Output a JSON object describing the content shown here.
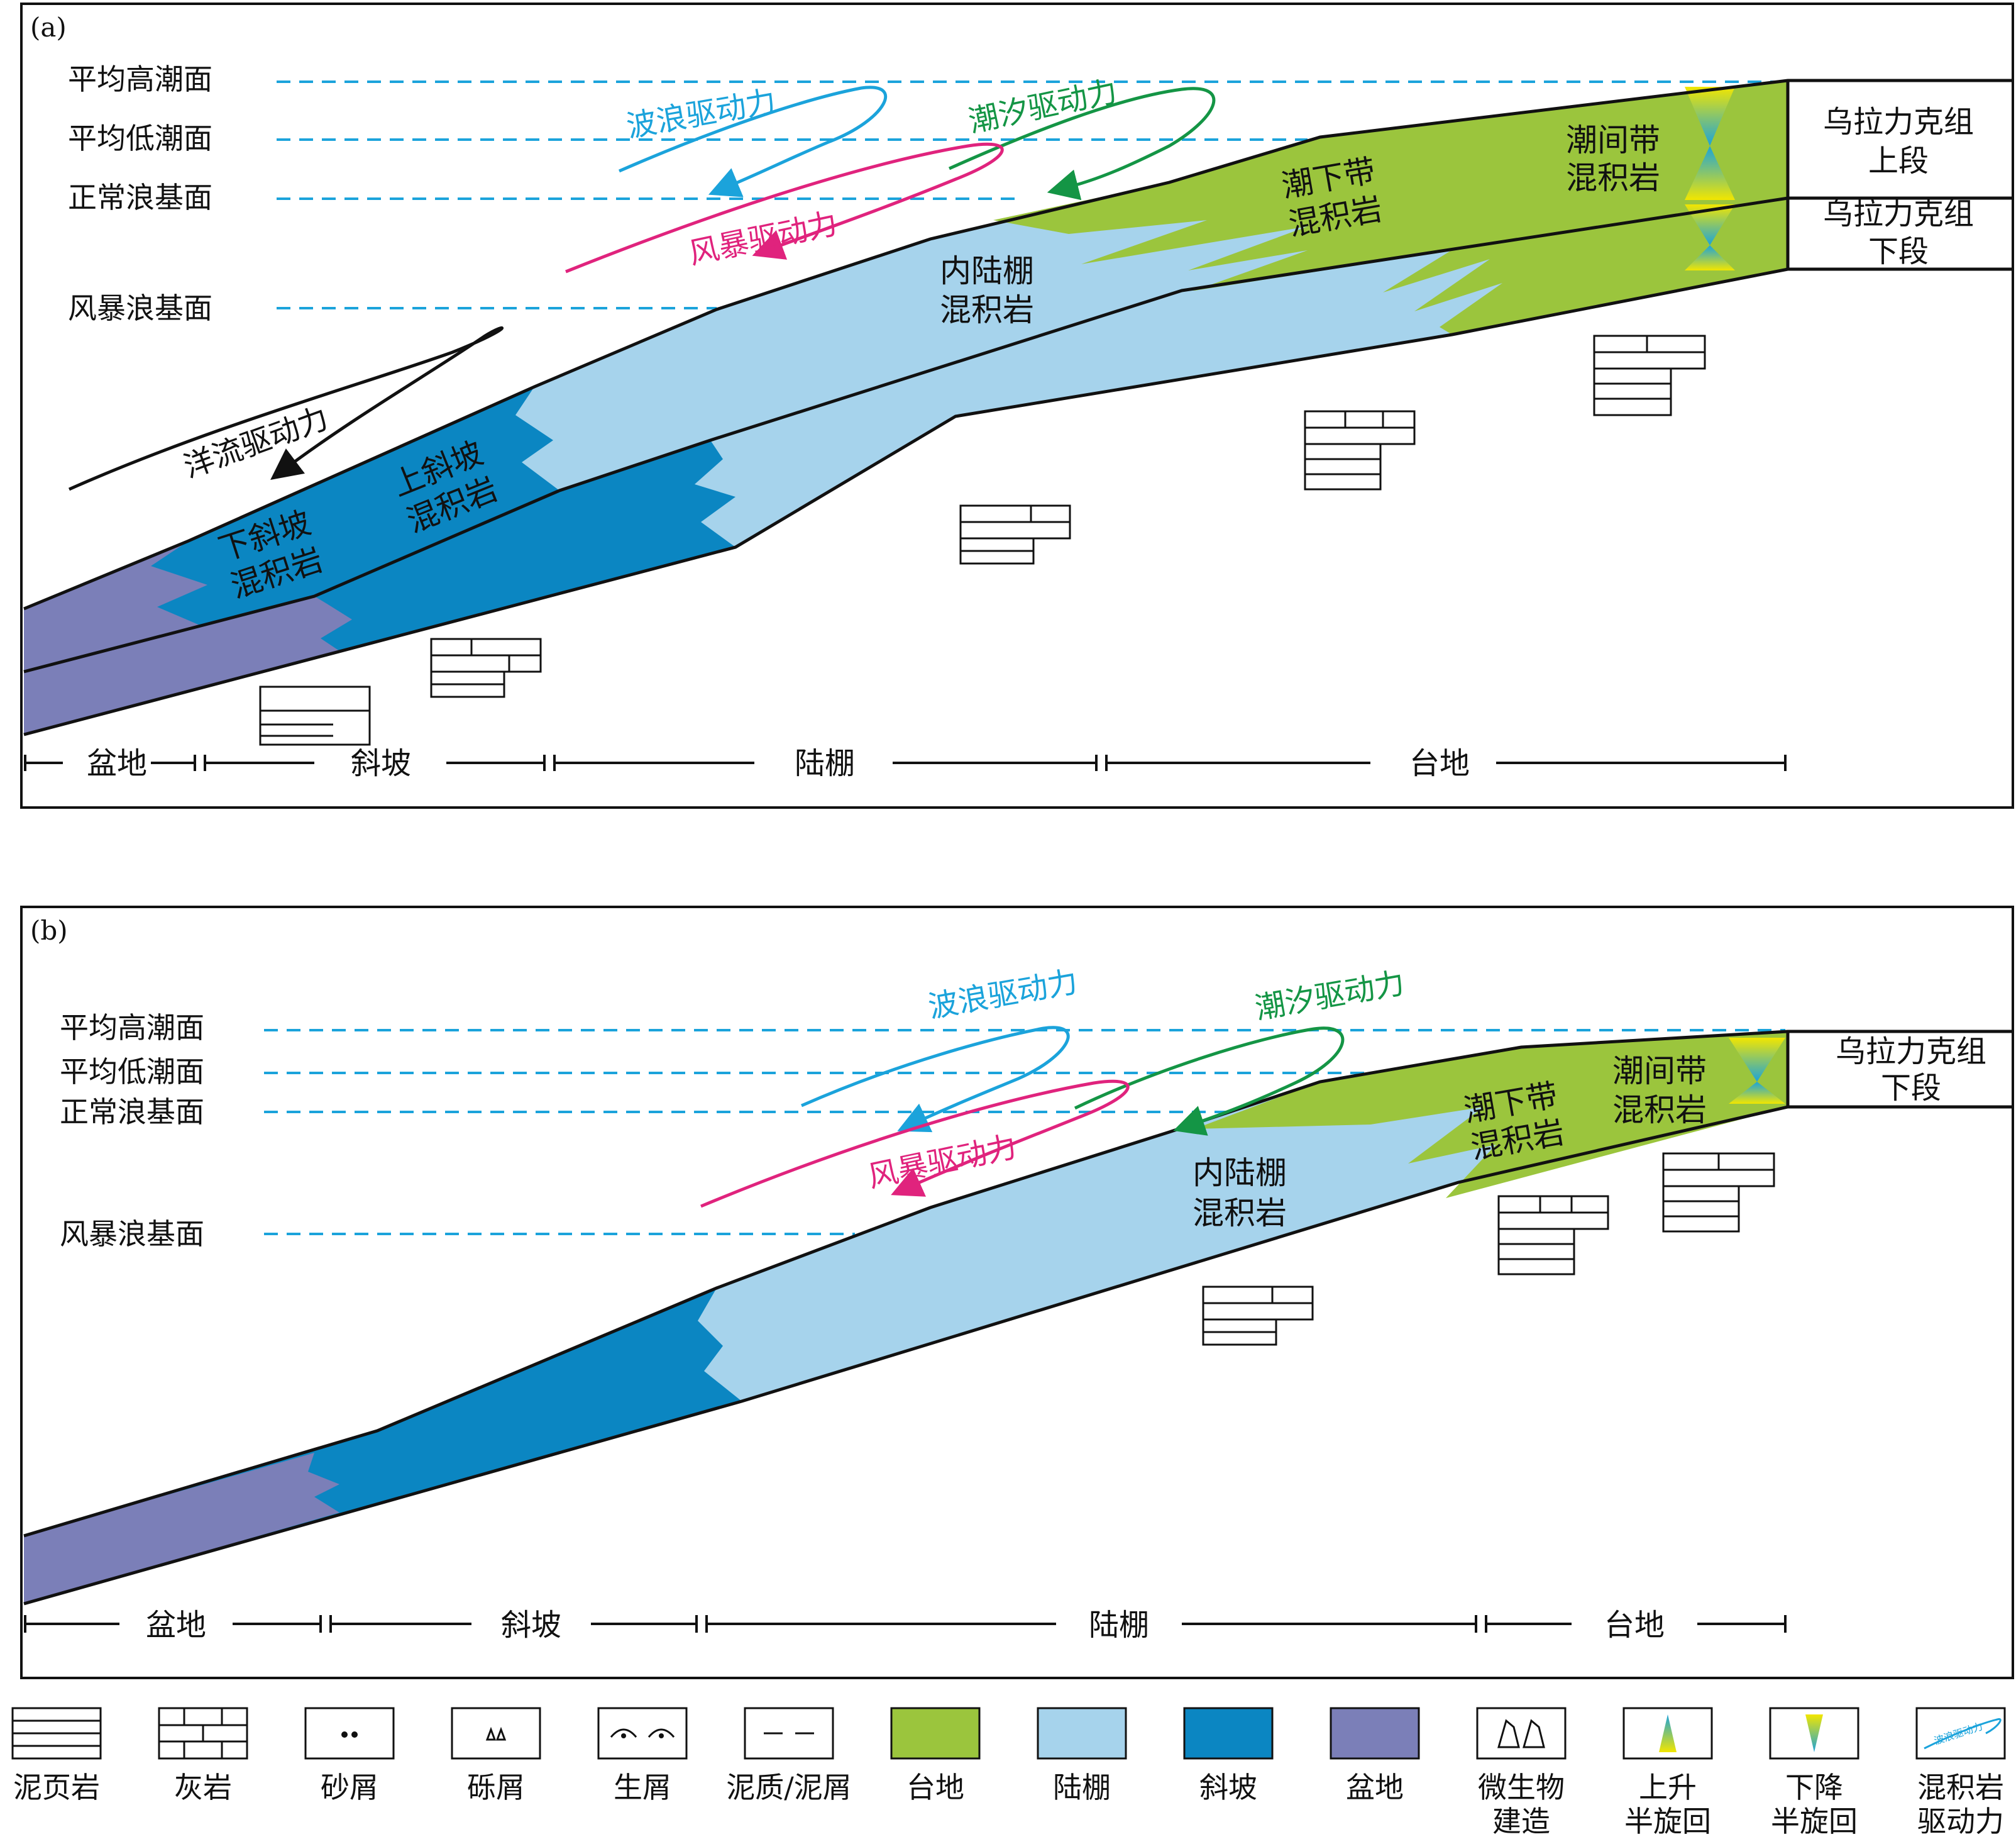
{
  "colors": {
    "platform": "#9BC53D",
    "shelf": "#A6D3EC",
    "slope": "#0B86C2",
    "basin": "#7B7FB8",
    "wave": "#1BA3DB",
    "tide": "#149545",
    "storm": "#E0237D",
    "current": "#111111",
    "dashed": "#1BA3DB"
  },
  "panel_a": {
    "tag": "(a)",
    "levels": [
      "平均高潮面",
      "平均低潮面",
      "正常浪基面",
      "风暴浪基面"
    ],
    "drivers": {
      "wave": "波浪驱动力",
      "tide": "潮汐驱动力",
      "storm": "风暴驱动力",
      "current": "洋流驱动力"
    },
    "facies": {
      "intertidal": [
        "潮间带",
        "混积岩"
      ],
      "subtidal": [
        "潮下带",
        "混积岩"
      ],
      "inner_shelf": [
        "内陆棚",
        "混积岩"
      ],
      "upper_slope": [
        "上斜坡",
        "混积岩"
      ],
      "lower_slope": [
        "下斜坡",
        "混积岩"
      ]
    },
    "units": {
      "upper": [
        "乌拉力克组",
        "上段"
      ],
      "lower": [
        "乌拉力克组",
        "下段"
      ]
    },
    "zones": [
      "盆地",
      "斜坡",
      "陆棚",
      "台地"
    ]
  },
  "panel_b": {
    "tag": "(b)",
    "levels": [
      "平均高潮面",
      "平均低潮面",
      "正常浪基面",
      "风暴浪基面"
    ],
    "drivers": {
      "wave": "波浪驱动力",
      "tide": "潮汐驱动力",
      "storm": "风暴驱动力"
    },
    "facies": {
      "intertidal": [
        "潮间带",
        "混积岩"
      ],
      "subtidal": [
        "潮下带",
        "混积岩"
      ],
      "inner_shelf": [
        "内陆棚",
        "混积岩"
      ]
    },
    "units": {
      "lower": [
        "乌拉力克组",
        "下段"
      ]
    },
    "zones": [
      "盆地",
      "斜坡",
      "陆棚",
      "台地"
    ]
  },
  "legend": [
    {
      "label": [
        "泥页岩"
      ],
      "icon": "shale-icon"
    },
    {
      "label": [
        "灰岩"
      ],
      "icon": "limestone-icon"
    },
    {
      "label": [
        "砂屑"
      ],
      "icon": "sand-grain-icon"
    },
    {
      "label": [
        "砾屑"
      ],
      "icon": "gravel-icon"
    },
    {
      "label": [
        "生屑"
      ],
      "icon": "bioclast-icon"
    },
    {
      "label": [
        "泥质/泥屑"
      ],
      "icon": "mud-icon"
    },
    {
      "label": [
        "台地"
      ],
      "icon": "platform-swatch"
    },
    {
      "label": [
        "陆棚"
      ],
      "icon": "shelf-swatch"
    },
    {
      "label": [
        "斜坡"
      ],
      "icon": "slope-swatch"
    },
    {
      "label": [
        "盆地"
      ],
      "icon": "basin-swatch"
    },
    {
      "label": [
        "微生物",
        "建造"
      ],
      "icon": "microbial-icon"
    },
    {
      "label": [
        "上升",
        "半旋回"
      ],
      "icon": "rising-hemicycle-icon"
    },
    {
      "label": [
        "下降",
        "半旋回"
      ],
      "icon": "falling-hemicycle-icon"
    },
    {
      "label": [
        "混积岩",
        "驱动力"
      ],
      "icon": "driver-arrow-icon"
    }
  ],
  "legend_driver_sample": "波浪驱动力"
}
